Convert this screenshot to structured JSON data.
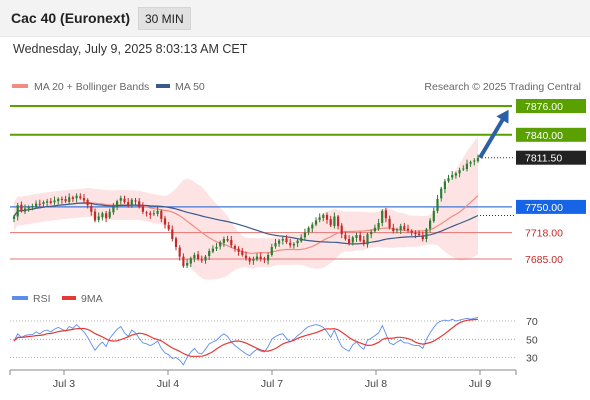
{
  "header": {
    "title": "Cac 40 (Euronext)",
    "interval": "30 MIN"
  },
  "datetime": "Wednesday, July 9, 2025 8:03:13 AM CET",
  "legend": {
    "ma20": "MA 20 + Bollinger Bands",
    "ma50": "MA 50",
    "credit": "Research © 2025 Trading Central"
  },
  "rsi_legend": {
    "rsi": "RSI",
    "ma": "9MA"
  },
  "colors": {
    "up": "#2e7d32",
    "down": "#c62828",
    "resistance": "#5aa000",
    "pivot": "#1565c0",
    "support": "#e57373",
    "ma20": "#f28b82",
    "ma50": "#3a5a8c",
    "bands": "#fde3e3",
    "arrow": "#2b5fa6",
    "rsi": "#5b8def",
    "rsi_ma": "#e53935"
  },
  "chart_data": {
    "type": "candlestick",
    "x_ticks": [
      "Jul 3",
      "Jul 4",
      "Jul 7",
      "Jul 8",
      "Jul 9"
    ],
    "ylim": [
      7670,
      7885
    ],
    "price_levels": [
      {
        "label": "7876.00",
        "value": 7876,
        "kind": "resistance"
      },
      {
        "label": "7840.00",
        "value": 7840,
        "kind": "resistance"
      },
      {
        "label": "7811.50",
        "value": 7811.5,
        "kind": "last"
      },
      {
        "label": "7750.00",
        "value": 7750,
        "kind": "pivot"
      },
      {
        "label": "7718.00",
        "value": 7718,
        "kind": "support"
      },
      {
        "label": "7685.00",
        "value": 7685,
        "kind": "support"
      }
    ],
    "close": [
      7738,
      7752,
      7745,
      7748,
      7750,
      7751,
      7754,
      7753,
      7756,
      7757,
      7755,
      7758,
      7760,
      7759,
      7757,
      7762,
      7760,
      7764,
      7761,
      7758,
      7752,
      7744,
      7733,
      7738,
      7742,
      7736,
      7744,
      7750,
      7757,
      7761,
      7756,
      7752,
      7759,
      7757,
      7750,
      7744,
      7742,
      7740,
      7742,
      7745,
      7735,
      7728,
      7722,
      7710,
      7700,
      7688,
      7676,
      7680,
      7686,
      7690,
      7685,
      7683,
      7688,
      7695,
      7698,
      7700,
      7706,
      7710,
      7708,
      7702,
      7698,
      7694,
      7690,
      7686,
      7682,
      7685,
      7688,
      7685,
      7684,
      7690,
      7700,
      7705,
      7708,
      7710,
      7706,
      7702,
      7704,
      7708,
      7712,
      7718,
      7724,
      7728,
      7733,
      7737,
      7740,
      7734,
      7727,
      7738,
      7726,
      7716,
      7710,
      7705,
      7712,
      7715,
      7708,
      7704,
      7716,
      7719,
      7724,
      7730,
      7745,
      7736,
      7724,
      7720,
      7722,
      7726,
      7722,
      7721,
      7718,
      7716,
      7715,
      7710,
      7722,
      7733,
      7745,
      7760,
      7773,
      7782,
      7786,
      7790,
      7792,
      7796,
      7798,
      7804,
      7806,
      7808,
      7811.5
    ],
    "rsi": [
      48,
      56,
      52,
      54,
      55,
      55,
      58,
      56,
      59,
      60,
      58,
      61,
      63,
      61,
      59,
      64,
      62,
      66,
      62,
      58,
      52,
      45,
      38,
      43,
      47,
      42,
      51,
      56,
      61,
      64,
      57,
      53,
      60,
      57,
      51,
      46,
      45,
      43,
      45,
      48,
      40,
      35,
      33,
      29,
      30,
      27,
      22,
      30,
      36,
      40,
      35,
      34,
      39,
      45,
      47,
      49,
      53,
      56,
      53,
      47,
      43,
      40,
      37,
      34,
      32,
      36,
      39,
      37,
      36,
      42,
      50,
      53,
      55,
      56,
      51,
      47,
      50,
      54,
      57,
      61,
      64,
      65,
      66,
      65,
      63,
      58,
      52,
      60,
      50,
      42,
      39,
      37,
      44,
      47,
      42,
      39,
      49,
      51,
      54,
      57,
      65,
      56,
      46,
      44,
      47,
      49,
      46,
      46,
      44,
      43,
      43,
      40,
      50,
      57,
      63,
      68,
      70,
      71,
      70,
      72,
      70,
      71,
      72,
      73,
      72,
      73,
      74
    ],
    "rsi_ticks": [
      70,
      50,
      30
    ],
    "projection": {
      "target": "7876.00"
    }
  }
}
